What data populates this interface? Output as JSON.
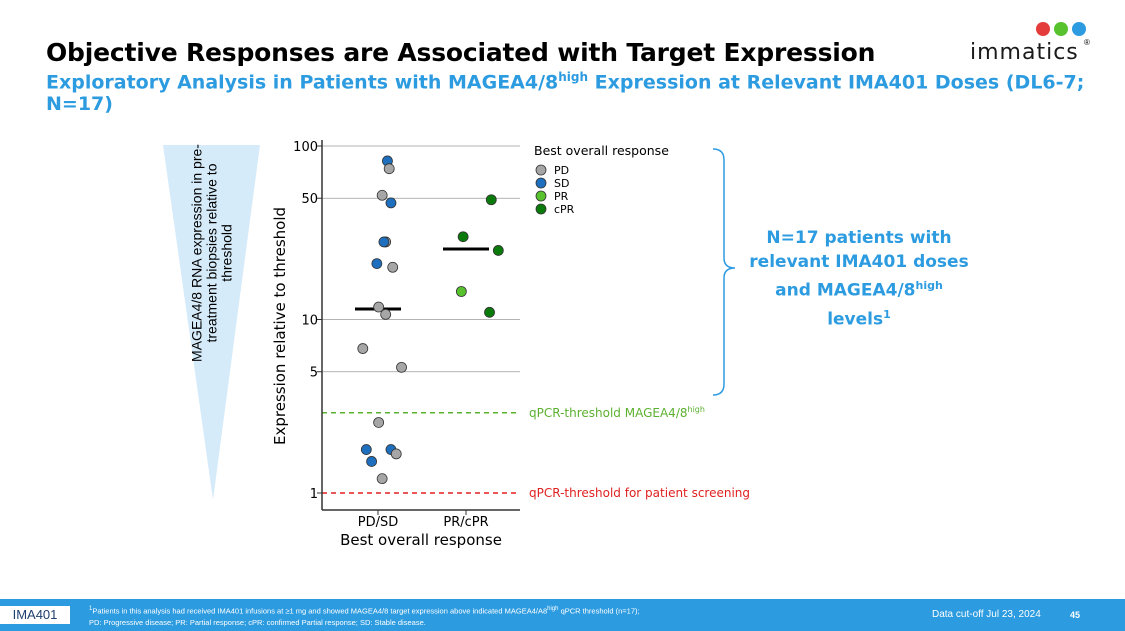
{
  "header": {
    "title": "Objective Responses are Associated with Target Expression",
    "subtitle_pre": "Exploratory Analysis in Patients with MAGEA4/8",
    "subtitle_sup": "high",
    "subtitle_post": " Expression at Relevant IMA401 Doses (DL6-7; N=17)"
  },
  "logo": {
    "text": "immatics",
    "mark": "®"
  },
  "triangle": {
    "label": "MAGEA4/8 RNA expression in pre-treatment biopsies relative to threshold",
    "color": "#d6ebf9"
  },
  "chart_data": {
    "type": "scatter",
    "y_scale": "log",
    "ylim": [
      0.8,
      105
    ],
    "yticks": [
      1,
      5,
      10,
      50,
      100
    ],
    "ylabel": "Expression relative to threshold",
    "xlabel": "Best overall response",
    "categories": [
      "PD/SD",
      "PR/cPR"
    ],
    "legend": {
      "title": "Best overall response",
      "position": "top-right",
      "entries": [
        {
          "label": "PD",
          "color": "#a6a6a6"
        },
        {
          "label": "SD",
          "color": "#1f6fbf"
        },
        {
          "label": "PR",
          "color": "#57c22e"
        },
        {
          "label": "cPR",
          "color": "#0a7a0a"
        }
      ]
    },
    "points": [
      {
        "category": "PD/SD",
        "offset": -0.12,
        "y": 82,
        "response": "SD"
      },
      {
        "category": "PD/SD",
        "offset": -0.1,
        "y": 74,
        "response": "PD"
      },
      {
        "category": "PD/SD",
        "offset": -0.18,
        "y": 52,
        "response": "PD"
      },
      {
        "category": "PD/SD",
        "offset": -0.08,
        "y": 47,
        "response": "SD"
      },
      {
        "category": "PD/SD",
        "offset": -0.14,
        "y": 28,
        "response": "PD"
      },
      {
        "category": "PD/SD",
        "offset": -0.16,
        "y": 28,
        "response": "SD"
      },
      {
        "category": "PD/SD",
        "offset": -0.24,
        "y": 21,
        "response": "SD"
      },
      {
        "category": "PD/SD",
        "offset": -0.06,
        "y": 20,
        "response": "PD"
      },
      {
        "category": "PD/SD",
        "offset": -0.22,
        "y": 11.8,
        "response": "PD"
      },
      {
        "category": "PD/SD",
        "offset": -0.14,
        "y": 10.7,
        "response": "PD"
      },
      {
        "category": "PD/SD",
        "offset": -0.4,
        "y": 6.8,
        "response": "PD"
      },
      {
        "category": "PD/SD",
        "offset": 0.04,
        "y": 5.3,
        "response": "PD"
      },
      {
        "category": "PD/SD",
        "offset": -0.22,
        "y": 2.55,
        "response": "PD"
      },
      {
        "category": "PD/SD",
        "offset": -0.36,
        "y": 1.78,
        "response": "SD"
      },
      {
        "category": "PD/SD",
        "offset": -0.08,
        "y": 1.78,
        "response": "SD"
      },
      {
        "category": "PD/SD",
        "offset": -0.02,
        "y": 1.68,
        "response": "PD"
      },
      {
        "category": "PD/SD",
        "offset": -0.3,
        "y": 1.52,
        "response": "SD"
      },
      {
        "category": "PD/SD",
        "offset": -0.18,
        "y": 1.21,
        "response": "PD"
      },
      {
        "category": "PR/cPR",
        "offset": 0.06,
        "y": 49,
        "response": "cPR"
      },
      {
        "category": "PR/cPR",
        "offset": -0.26,
        "y": 30,
        "response": "cPR"
      },
      {
        "category": "PR/cPR",
        "offset": 0.14,
        "y": 25,
        "response": "cPR"
      },
      {
        "category": "PR/cPR",
        "offset": -0.28,
        "y": 14.5,
        "response": "PR"
      },
      {
        "category": "PR/cPR",
        "offset": 0.04,
        "y": 11.0,
        "response": "cPR"
      }
    ],
    "medians": [
      {
        "category": "PD/SD",
        "y": 11.5
      },
      {
        "category": "PR/cPR",
        "y": 25.5
      }
    ],
    "thresholds": [
      {
        "y": 2.9,
        "label": "qPCR-threshold MAGEA4/8",
        "label_sup": "high",
        "color": "#5cb030"
      },
      {
        "y": 1.0,
        "label": "qPCR-threshold for patient screening",
        "label_sup": "",
        "color": "#e02020"
      }
    ]
  },
  "callout": {
    "line1": "N=17 patients with",
    "line2": "relevant IMA401 doses",
    "line3_pre": "and MAGEA4/8",
    "line3_sup": "high",
    "line4_pre": "levels",
    "line4_sup": "1",
    "bracket_color": "#2c9be0"
  },
  "footer": {
    "tag": "IMA401",
    "footnote1_sup": "1",
    "footnote1_a": "Patients in this analysis had received IMA401 infusions at ≥1 mg and showed MAGEA4/8 target expression above indicated MAGEA4/A8",
    "footnote1_sup2": "high",
    "footnote1_b": " qPCR threshold (n=17);",
    "footnote2": "PD: Progressive disease; PR: Partial response; cPR: confirmed Partial response; SD: Stable disease.",
    "cutoff": "Data cut-off Jul 23, 2024",
    "page": "45"
  }
}
